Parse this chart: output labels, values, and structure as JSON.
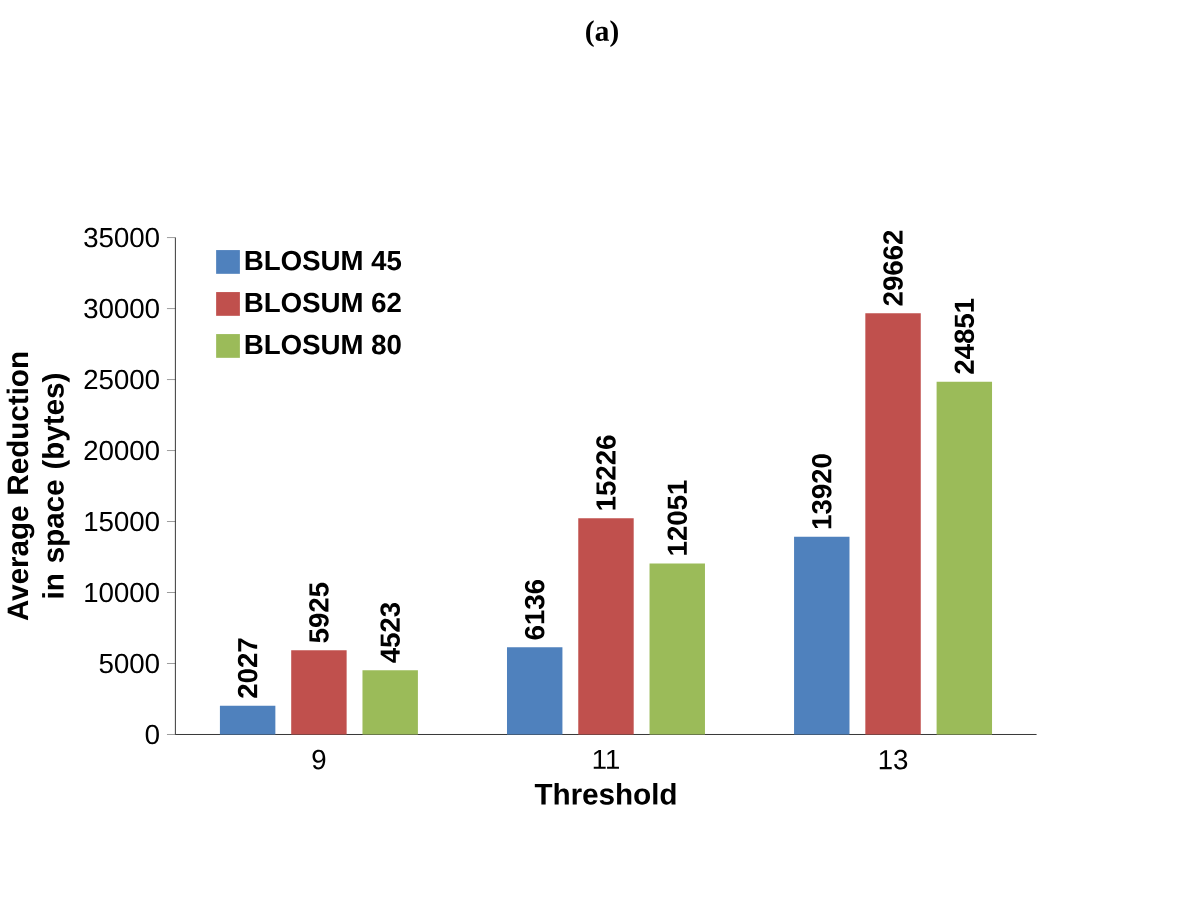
{
  "chart_data": {
    "type": "bar",
    "title": "(a)",
    "xlabel": "Threshold",
    "ylabel": "Average Reduction in space (bytes)",
    "categories": [
      "9",
      "11",
      "13"
    ],
    "series": [
      {
        "name": "BLOSUM 45",
        "color": "#4f81bd",
        "values": [
          2027,
          6136,
          13920
        ]
      },
      {
        "name": "BLOSUM 62",
        "color": "#c0504d",
        "values": [
          5925,
          15226,
          29662
        ]
      },
      {
        "name": "BLOSUM 80",
        "color": "#9bbb59",
        "values": [
          4523,
          12051,
          24851
        ]
      }
    ],
    "ylim": [
      0,
      35000
    ],
    "yticks": [
      0,
      5000,
      10000,
      15000,
      20000,
      25000,
      30000,
      35000
    ],
    "data_labels": true,
    "legend": "top left",
    "grid": false
  }
}
